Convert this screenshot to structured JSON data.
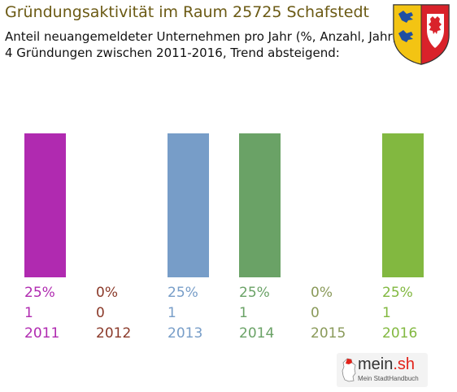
{
  "chart_data": {
    "type": "bar",
    "title": "Gründungsaktivität im Raum 25725 Schafstedt",
    "subtitle_lines": [
      "Anteil neuangemeldeter Unternehmen pro Jahr (%, Anzahl, Jahr)",
      "4 Gründungen zwischen 2011-2016, Trend absteigend:"
    ],
    "categories": [
      "2011",
      "2012",
      "2013",
      "2014",
      "2015",
      "2016"
    ],
    "values": [
      25,
      0,
      25,
      25,
      0,
      25
    ],
    "percent_labels": [
      "25%",
      "0%",
      "25%",
      "25%",
      "0%",
      "25%"
    ],
    "count_labels": [
      "1",
      "0",
      "1",
      "1",
      "0",
      "1"
    ],
    "ylim": [
      0,
      25
    ],
    "grid": false,
    "legend": "none",
    "colors": [
      "#b02ab0",
      "#8b3a2a",
      "#779dc8",
      "#6aa266",
      "#8a9a5a",
      "#82b840"
    ]
  },
  "crest": {
    "icon": "schleswig-holstein-coat-of-arms-icon"
  },
  "logo": {
    "icon": "germany-map-icon",
    "name": "mein",
    "tld": ".sh",
    "tagline": "Mein StadtHandbuch"
  }
}
